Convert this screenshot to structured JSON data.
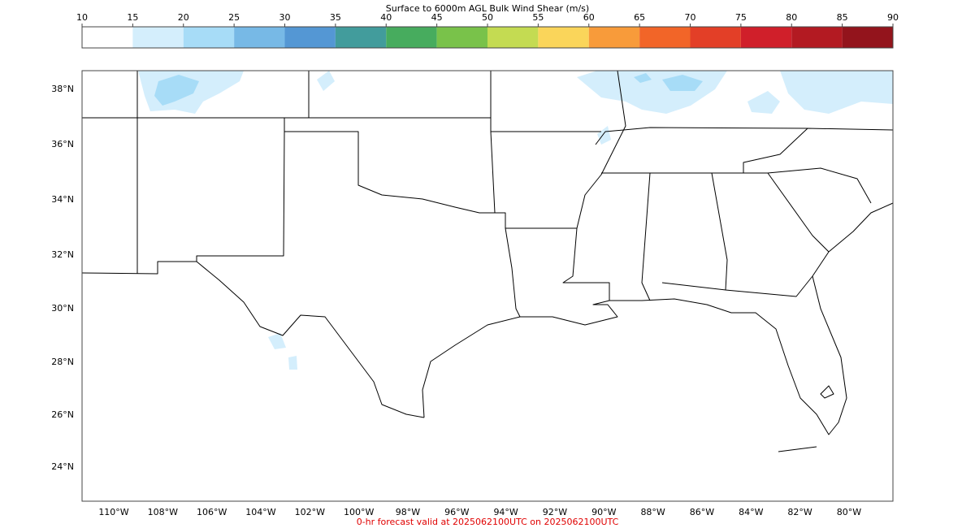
{
  "colorbar": {
    "title": "Surface to 6000m AGL Bulk Wind Shear (m/s)",
    "ticks": [
      10,
      15,
      20,
      25,
      30,
      35,
      40,
      45,
      50,
      55,
      60,
      65,
      70,
      75,
      80,
      85,
      90
    ],
    "colors": [
      "#ffffff",
      "#d4eefc",
      "#a7dcf7",
      "#77b9e6",
      "#5497d4",
      "#429c9c",
      "#47ac5e",
      "#79c24a",
      "#c4db52",
      "#fad55a",
      "#f89b3a",
      "#f26528",
      "#e33f27",
      "#d01f2a",
      "#b31a22",
      "#93141c"
    ]
  },
  "map": {
    "latitude_labels": [
      "38°N",
      "36°N",
      "34°N",
      "32°N",
      "30°N",
      "28°N",
      "26°N",
      "24°N"
    ],
    "longitude_labels": [
      "110°W",
      "108°W",
      "106°W",
      "104°W",
      "102°W",
      "100°W",
      "98°W",
      "96°W",
      "94°W",
      "92°W",
      "90°W",
      "88°W",
      "86°W",
      "84°W",
      "82°W",
      "80°W"
    ]
  },
  "footer": "0-hr forecast valid at 2025062100UTC on 2025062100UTC"
}
